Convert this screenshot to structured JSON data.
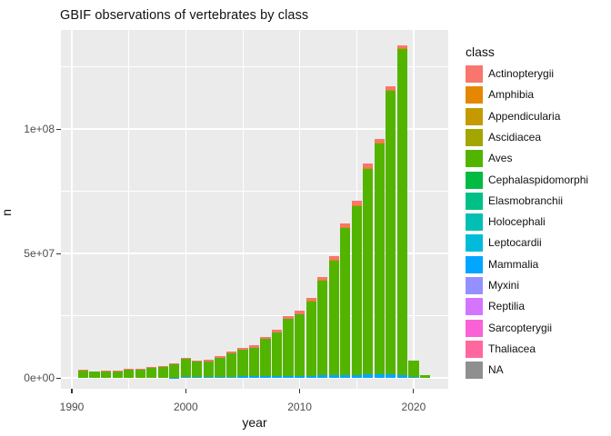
{
  "chart_data": {
    "type": "bar",
    "stacked": true,
    "title": "GBIF observations of vertebrates by class",
    "xlabel": "year",
    "ylabel": "n",
    "grid": true,
    "panel_bg": "#EBEBEB",
    "gridline_color": "#FFFFFF",
    "tick_label_color": "#4D4D4D",
    "text_color": "#111111",
    "x_axis": {
      "label": "year",
      "major_ticks": [
        1990,
        2000,
        2010,
        2020
      ],
      "tick_labels": [
        "1990",
        "2000",
        "2010",
        "2020"
      ],
      "minor_gridlines": [
        1995,
        2005,
        2015
      ],
      "range": [
        1989.04,
        2023.04
      ]
    },
    "y_axis": {
      "label": "n",
      "major_ticks": [
        0,
        50000000,
        100000000
      ],
      "tick_labels": [
        "0e+00",
        "5e+07",
        "1e+08"
      ],
      "minor_gridlines": [
        25000000,
        75000000,
        125000000
      ],
      "range": [
        -4380000,
        139800000
      ]
    },
    "legend": {
      "title": "class",
      "position": "right"
    },
    "classes": [
      {
        "label": "Actinopterygii",
        "color": "#F8766D"
      },
      {
        "label": "Amphibia",
        "color": "#E58700"
      },
      {
        "label": "Appendicularia",
        "color": "#C49A00"
      },
      {
        "label": "Ascidiacea",
        "color": "#A3A500"
      },
      {
        "label": "Aves",
        "color": "#53B400"
      },
      {
        "label": "Cephalaspidomorphi",
        "color": "#00BA42"
      },
      {
        "label": "Elasmobranchii",
        "color": "#00C087"
      },
      {
        "label": "Holocephali",
        "color": "#00C0B4"
      },
      {
        "label": "Leptocardii",
        "color": "#00BBDA"
      },
      {
        "label": "Mammalia",
        "color": "#00A6FF"
      },
      {
        "label": "Myxini",
        "color": "#9590FF"
      },
      {
        "label": "Reptilia",
        "color": "#D575FE"
      },
      {
        "label": "Sarcopterygii",
        "color": "#FB61D7"
      },
      {
        "label": "Thaliacea",
        "color": "#FF689E"
      },
      {
        "label": "NA",
        "color": "#8F8F8F"
      }
    ],
    "years": [
      1991,
      1992,
      1993,
      1994,
      1995,
      1996,
      1997,
      1998,
      1999,
      2000,
      2001,
      2002,
      2003,
      2004,
      2005,
      2006,
      2007,
      2008,
      2009,
      2010,
      2011,
      2012,
      2013,
      2014,
      2015,
      2016,
      2017,
      2018,
      2019,
      2020,
      2021
    ],
    "series": [
      {
        "name": "Mammalia",
        "color": "#00A6FF",
        "values": [
          0,
          0,
          0,
          0,
          0,
          0,
          0,
          0,
          100000,
          500000,
          400000,
          400000,
          450000,
          500000,
          550000,
          550000,
          600000,
          650000,
          700000,
          700000,
          800000,
          1000000,
          1000000,
          1100000,
          1200000,
          1300000,
          1300000,
          1300000,
          1200000,
          200000,
          0
        ]
      },
      {
        "name": "Aves",
        "color": "#53B400",
        "values": [
          3100000,
          2450000,
          2700000,
          2700000,
          3150000,
          3400000,
          3900000,
          4350000,
          5200000,
          7000000,
          6000000,
          6300000,
          7450000,
          9300000,
          10650000,
          11650000,
          15100000,
          17550000,
          23100000,
          24900000,
          30000000,
          38100000,
          46100000,
          59000000,
          67900000,
          82700000,
          92700000,
          114000000,
          131000000,
          6600000,
          950000
        ]
      },
      {
        "name": "Amphibia",
        "color": "#E58700",
        "values": [
          0,
          0,
          0,
          0,
          0,
          0,
          0,
          0,
          0,
          0,
          0,
          0,
          0,
          0,
          0,
          0,
          0,
          0,
          0,
          100000,
          300000,
          300000,
          300000,
          400000,
          400000,
          400000,
          400000,
          400000,
          400000,
          0,
          0
        ]
      },
      {
        "name": "Actinopterygii",
        "color": "#F8766D",
        "values": [
          300000,
          250000,
          300000,
          300000,
          350000,
          400000,
          400000,
          450000,
          500000,
          700000,
          600000,
          600000,
          700000,
          800000,
          900000,
          800000,
          900000,
          1000000,
          1100000,
          1200000,
          1200000,
          1300000,
          1400000,
          1500000,
          1500000,
          1600000,
          1600000,
          1500000,
          1000000,
          300000,
          50000
        ]
      }
    ]
  }
}
